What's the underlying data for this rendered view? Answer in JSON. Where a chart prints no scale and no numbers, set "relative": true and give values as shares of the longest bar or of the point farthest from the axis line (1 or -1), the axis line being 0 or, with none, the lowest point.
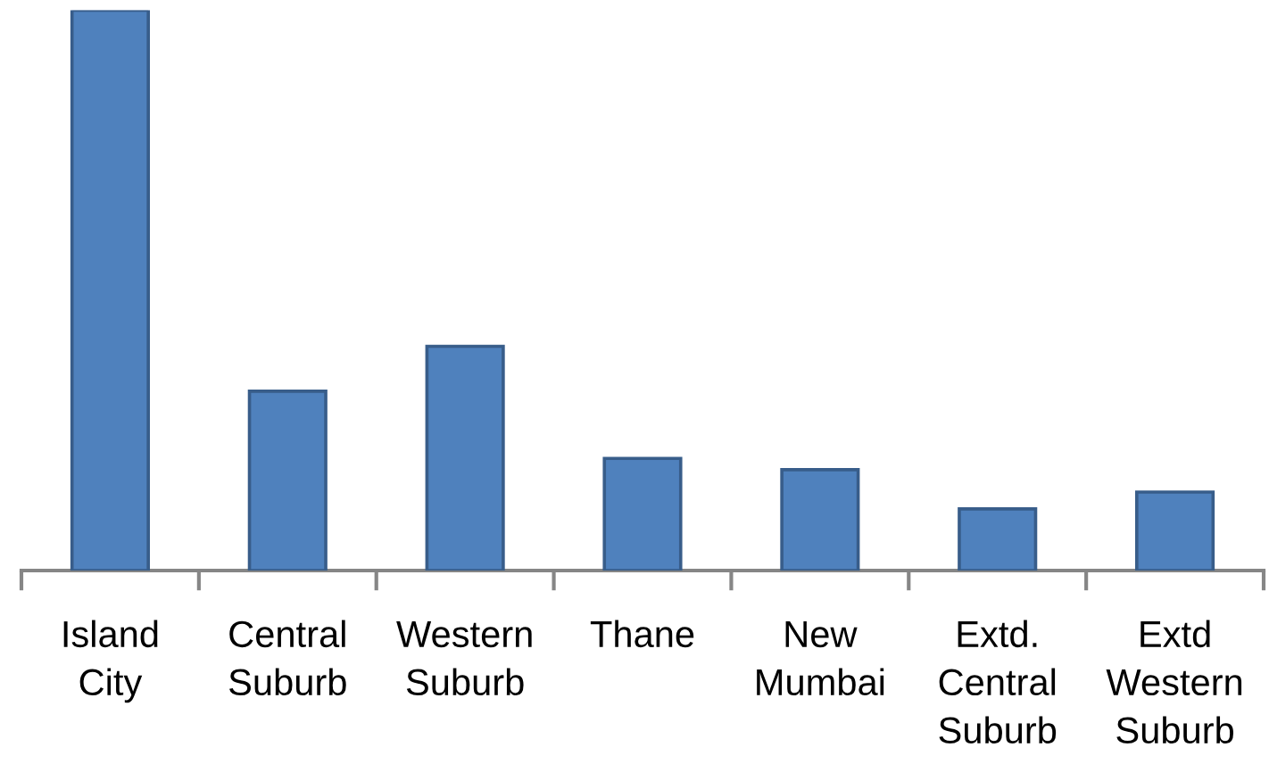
{
  "chart_data": {
    "type": "bar",
    "relative": true,
    "categories": [
      "Island City",
      "Central Suburb",
      "Western Suburb",
      "Thane",
      "New Mumbai",
      "Extd. Central Suburb",
      "Extd Western Suburb"
    ],
    "values": [
      1,
      0.32,
      0.4,
      0.2,
      0.18,
      0.11,
      0.14
    ],
    "color": "#4f81bd"
  }
}
